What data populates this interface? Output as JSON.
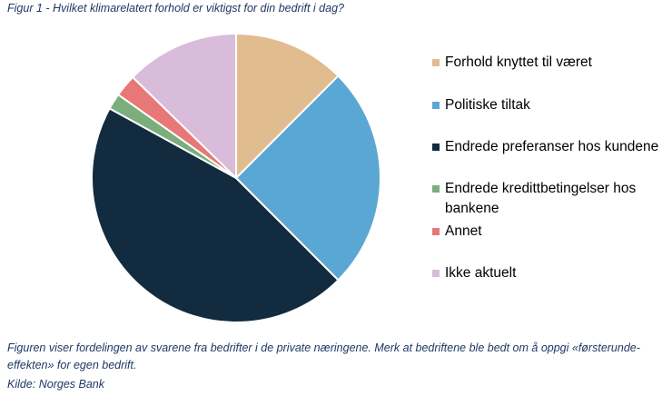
{
  "figure_title": "Figur 1 - Hvilket klimarelatert forhold er viktigst for din bedrift i dag?",
  "chart_data": {
    "type": "pie",
    "title": "Hvilket klimarelatert forhold er viktigst for din bedrift i dag?",
    "unit": "percent",
    "legend_position": "right",
    "slices": [
      {
        "label": "Forhold knyttet til været",
        "value": 12.5,
        "color": "#E1BC8F"
      },
      {
        "label": "Politiske tiltak",
        "value": 25.0,
        "color": "#5BA7D3"
      },
      {
        "label": "Endrede preferanser hos kundene",
        "value": 45.5,
        "color": "#122B3E"
      },
      {
        "label": "Endrede kredittbetingelser hos bankene",
        "value": 1.8,
        "color": "#7AAE7D"
      },
      {
        "label": "Annet",
        "value": 2.5,
        "color": "#E87777"
      },
      {
        "label": "Ikke aktuelt",
        "value": 12.7,
        "color": "#D9BCD9"
      }
    ]
  },
  "caption": "Figuren viser fordelingen av svarene fra bedrifter i de private næringene. Merk at bedriftene ble bedt om å oppgi «førsterunde-effekten» for egen bedrift.",
  "source": "Kilde: Norges Bank"
}
